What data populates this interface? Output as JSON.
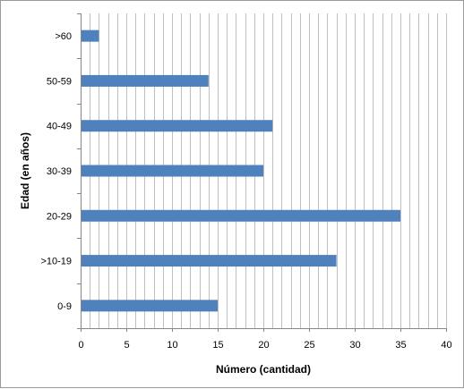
{
  "chart_data": {
    "type": "bar",
    "orientation": "horizontal",
    "categories": [
      "0-9",
      ">10-19",
      "20-29",
      "30-39",
      "40-49",
      "50-59",
      ">60"
    ],
    "values": [
      15,
      28,
      35,
      20,
      21,
      14,
      2
    ],
    "xlabel": "Número (cantidad)",
    "ylabel": "Edad (en años)",
    "xlim": [
      0,
      40
    ],
    "xticks": [
      0,
      5,
      10,
      15,
      20,
      25,
      30,
      35,
      40
    ],
    "minor_gridlines_every": 1,
    "grid": true,
    "legend": "none",
    "colors": {
      "bar": "#4f81bd",
      "grid": "#bfbfbf",
      "axis": "#868686"
    }
  }
}
